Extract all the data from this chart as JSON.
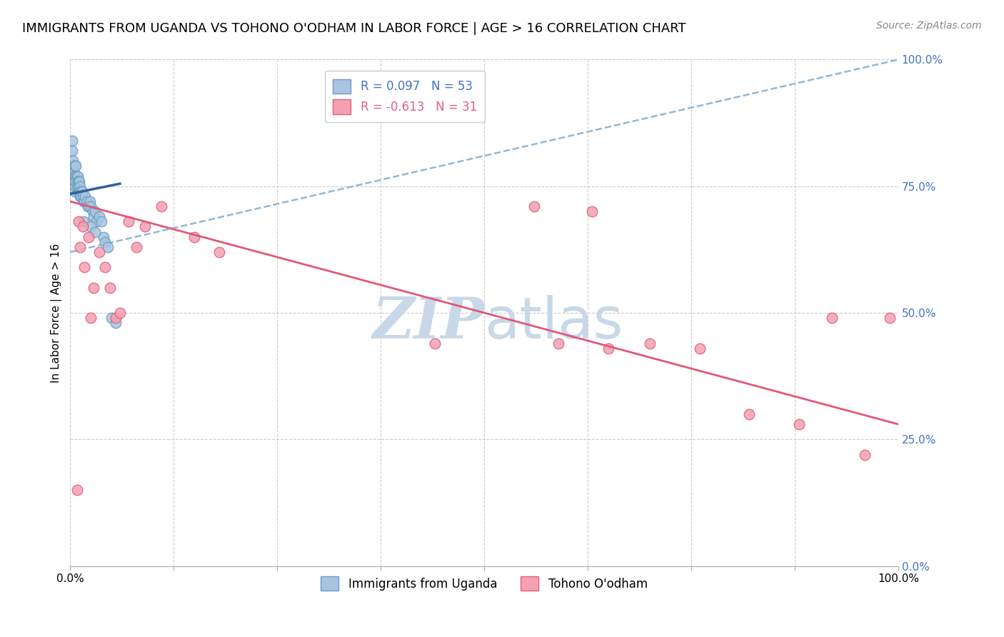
{
  "title": "IMMIGRANTS FROM UGANDA VS TOHONO O'ODHAM IN LABOR FORCE | AGE > 16 CORRELATION CHART",
  "source_text": "Source: ZipAtlas.com",
  "ylabel": "In Labor Force | Age > 16",
  "ytick_labels": [
    "0.0%",
    "25.0%",
    "50.0%",
    "75.0%",
    "100.0%"
  ],
  "ytick_values": [
    0.0,
    0.25,
    0.5,
    0.75,
    1.0
  ],
  "xlim": [
    0.0,
    1.0
  ],
  "ylim": [
    0.0,
    1.0
  ],
  "legend_color1": "#a8c4e0",
  "legend_color2": "#f4a0b0",
  "uganda_color": "#a8c4e0",
  "uganda_edge": "#6a9fc0",
  "tohono_color": "#f4a0b0",
  "tohono_edge": "#e06080",
  "blue_line_color": "#3060a0",
  "pink_line_color": "#e05878",
  "dashed_line_color": "#90b8d8",
  "watermark_color": "#c8d8e8",
  "title_fontsize": 13,
  "axis_label_fontsize": 11,
  "tick_fontsize": 11,
  "source_fontsize": 10,
  "uganda_scatter_x": [
    0.002,
    0.002,
    0.003,
    0.003,
    0.004,
    0.004,
    0.005,
    0.005,
    0.005,
    0.005,
    0.006,
    0.006,
    0.006,
    0.007,
    0.007,
    0.007,
    0.008,
    0.008,
    0.009,
    0.009,
    0.01,
    0.01,
    0.01,
    0.011,
    0.011,
    0.012,
    0.012,
    0.013,
    0.013,
    0.014,
    0.015,
    0.016,
    0.017,
    0.018,
    0.02,
    0.021,
    0.022,
    0.024,
    0.025,
    0.027,
    0.028,
    0.03,
    0.032,
    0.035,
    0.038,
    0.04,
    0.042,
    0.045,
    0.05,
    0.055,
    0.016,
    0.025,
    0.03
  ],
  "uganda_scatter_y": [
    0.84,
    0.82,
    0.79,
    0.8,
    0.78,
    0.77,
    0.79,
    0.76,
    0.75,
    0.74,
    0.79,
    0.77,
    0.75,
    0.79,
    0.77,
    0.76,
    0.77,
    0.75,
    0.77,
    0.76,
    0.76,
    0.75,
    0.74,
    0.76,
    0.74,
    0.75,
    0.73,
    0.74,
    0.73,
    0.74,
    0.73,
    0.72,
    0.72,
    0.73,
    0.72,
    0.71,
    0.71,
    0.72,
    0.71,
    0.7,
    0.69,
    0.7,
    0.68,
    0.69,
    0.68,
    0.65,
    0.64,
    0.63,
    0.49,
    0.48,
    0.68,
    0.67,
    0.66
  ],
  "tohono_scatter_x": [
    0.008,
    0.01,
    0.012,
    0.015,
    0.017,
    0.022,
    0.025,
    0.028,
    0.035,
    0.042,
    0.048,
    0.055,
    0.06,
    0.07,
    0.08,
    0.09,
    0.11,
    0.15,
    0.18,
    0.44,
    0.56,
    0.59,
    0.63,
    0.65,
    0.7,
    0.76,
    0.82,
    0.88,
    0.92,
    0.96,
    0.99
  ],
  "tohono_scatter_y": [
    0.15,
    0.68,
    0.63,
    0.67,
    0.59,
    0.65,
    0.49,
    0.55,
    0.62,
    0.59,
    0.55,
    0.49,
    0.5,
    0.68,
    0.63,
    0.67,
    0.71,
    0.65,
    0.62,
    0.44,
    0.71,
    0.44,
    0.7,
    0.43,
    0.44,
    0.43,
    0.3,
    0.28,
    0.49,
    0.22,
    0.49
  ],
  "blue_trend_x": [
    0.0,
    0.06
  ],
  "blue_trend_y": [
    0.735,
    0.755
  ],
  "dashed_trend_x": [
    0.0,
    1.0
  ],
  "dashed_trend_y": [
    0.62,
    1.0
  ],
  "pink_trend_x": [
    0.0,
    1.0
  ],
  "pink_trend_y": [
    0.72,
    0.28
  ]
}
